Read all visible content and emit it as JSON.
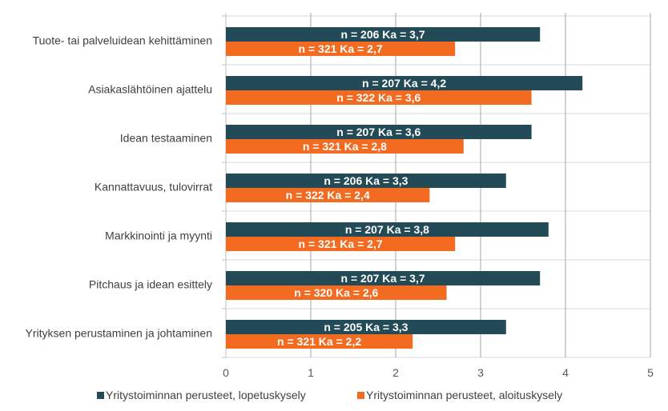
{
  "chart_data": {
    "type": "bar",
    "orientation": "horizontal",
    "categories": [
      "Tuote- tai palveluidean kehittäminen",
      "Asiakaslähtöinen ajattelu",
      "Idean testaaminen",
      "Kannattavuus, tulovirrat",
      "Markkinointi ja myynti",
      "Pitchaus ja idean esittely",
      "Yrityksen perustaminen ja johtaminen"
    ],
    "series": [
      {
        "name": "Yritystoiminnan perusteet, lopetuskysely",
        "color": "#234a57",
        "values": [
          3.7,
          4.2,
          3.6,
          3.3,
          3.8,
          3.7,
          3.3
        ],
        "data_labels": [
          "n = 206 Ka = 3,7",
          "n = 207 Ka = 4,2",
          "n = 207 Ka = 3,6",
          "n = 206 Ka = 3,3",
          "n = 207 Ka = 3,8",
          "n = 207 Ka = 3,7",
          "n = 205 Ka = 3,3"
        ]
      },
      {
        "name": "Yritystoiminnan perusteet, aloituskysely",
        "color": "#f26b21",
        "values": [
          2.7,
          3.6,
          2.8,
          2.4,
          2.7,
          2.6,
          2.2
        ],
        "data_labels": [
          "n = 321 Ka = 2,7",
          "n = 322 Ka = 3,6",
          "n = 321 Ka = 2,8",
          "n = 322 Ka = 2,4",
          "n = 321 Ka = 2,7",
          "n = 320 Ka = 2,6",
          "n = 321 Ka = 2,2"
        ]
      }
    ],
    "xlim": [
      0,
      5
    ],
    "xticks": [
      "0",
      "1",
      "2",
      "3",
      "4",
      "5"
    ],
    "grid": true,
    "legend_position": "bottom"
  }
}
